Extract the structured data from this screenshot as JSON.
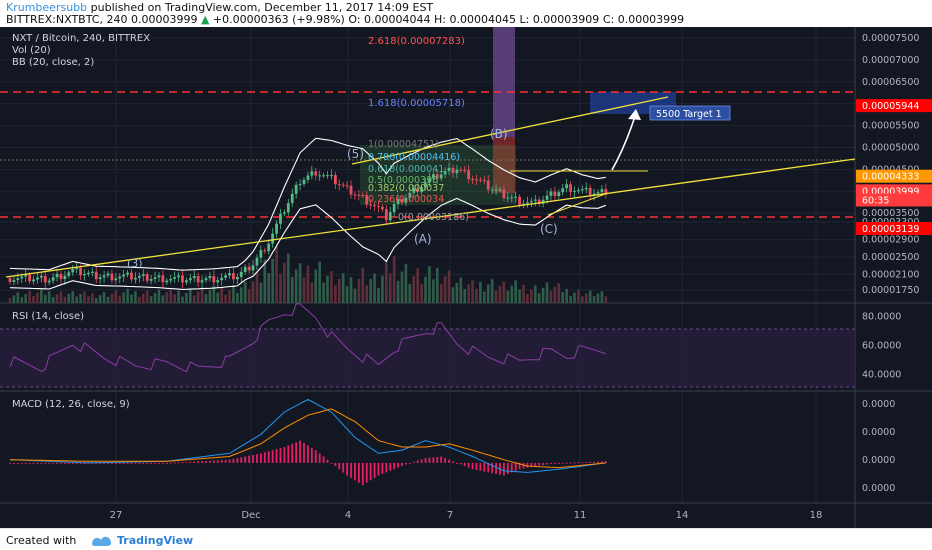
{
  "header": {
    "author": "Krumbeersubb",
    "published": "published on TradingView.com, December 11, 2017 14:09 EST",
    "symbol": "BITTREX:NXTBTC, 240",
    "last": "0.00003999",
    "change_arrow": "▲",
    "change": "+0.00000363 (+9.98%)",
    "o": "O: 0.00004044",
    "h": "H: 0.00004045",
    "l": "L: 0.00003909",
    "c": "C: 0.00003999"
  },
  "legend": {
    "title": "NXT / Bitcoin, 240, BITTREX",
    "vol": "Vol (20)",
    "bb": "BB (20, close, 2)",
    "rsi": "RSI (14, close)",
    "macd": "MACD (12, 26, close, 9)"
  },
  "annotations": {
    "fib_2618": "2.618(0.00007283)",
    "fib_1618": "1.618(0.00005718)",
    "fib_1": "1(0.00004751)",
    "fib_0786": "0.786(0.00004416)",
    "fib_0618": "0.618(0.000041",
    "fib_05": "0.5(0.0000396",
    "fib_0382": "0.382(0.000037",
    "fib_0236": "0.236(0.000034",
    "fib_0": "0(0.00003186)",
    "target": "5500 Target 1",
    "wave_3": "(3)",
    "wave_5": "(5)",
    "wave_A": "(A)",
    "wave_B": "(B)",
    "wave_C": "(C)"
  },
  "footer": {
    "created_with": "Created with",
    "brand": "TradingView"
  },
  "colors": {
    "bg": "#131722",
    "grid": "#1f2433",
    "up": "#53b987",
    "down": "#eb4d5c",
    "bb": "#ffffff",
    "trend": "#f2e23a",
    "red_dash": "#ff3030",
    "rsi": "#8a3ea3",
    "macd": "#2196f3",
    "signal": "#ff8c00",
    "hist": "#e91e63",
    "price_tag": "#ff9800",
    "red_tag": "#ff0000",
    "target_box": "#1e3a8a"
  },
  "chart_data": [
    {
      "type": "candlestick",
      "name": "price",
      "ylim": [
        1.45e-05,
        7.75e-05
      ],
      "y_ticks": [
        "0.00007500",
        "0.00007000",
        "0.00006500",
        "0.00006000",
        "0.00005500",
        "0.00005000",
        "0.00004500",
        "0.00004000",
        "0.00003500",
        "0.00003300",
        "0.00002900",
        "0.00002500",
        "0.00002100",
        "0.00001750"
      ],
      "price_tags": [
        {
          "label": "0.00005944",
          "value": 5.944e-05,
          "color": "#ff0000"
        },
        {
          "label": "0.00004333",
          "value": 4.333e-05,
          "color": "#ff9800"
        },
        {
          "label": "0.00003999",
          "value": 3.999e-05,
          "color": "#ff3b3b"
        },
        {
          "label": "60:35",
          "value": 3.79e-05,
          "color": "#ff3b3b"
        },
        {
          "label": "0.00003139",
          "value": 3.139e-05,
          "color": "#ff0000"
        }
      ],
      "x_labels": [
        "27",
        "Dec",
        "4",
        "7",
        "11",
        "14",
        "18"
      ],
      "close_path": [
        [
          0,
          2.02e-05
        ],
        [
          10,
          1.99e-05
        ],
        [
          16,
          2.18e-05
        ],
        [
          22,
          2.07e-05
        ],
        [
          30,
          2.05e-05
        ],
        [
          38,
          2.02e-05
        ],
        [
          44,
          1.98e-05
        ],
        [
          52,
          2.01e-05
        ],
        [
          58,
          2.06e-05
        ],
        [
          62,
          2.34e-05
        ],
        [
          66,
          2.85e-05
        ],
        [
          70,
          3.58e-05
        ],
        [
          74,
          4.24e-05
        ],
        [
          78,
          4.45e-05
        ],
        [
          82,
          4.28e-05
        ],
        [
          86,
          4.05e-05
        ],
        [
          90,
          3.85e-05
        ],
        [
          94,
          3.6e-05
        ],
        [
          96,
          3.4e-05
        ],
        [
          98,
          3.68e-05
        ],
        [
          102,
          3.95e-05
        ],
        [
          106,
          4.2e-05
        ],
        [
          110,
          4.4e-05
        ],
        [
          114,
          4.52e-05
        ],
        [
          118,
          4.32e-05
        ],
        [
          122,
          4.1e-05
        ],
        [
          126,
          3.92e-05
        ],
        [
          130,
          3.78e-05
        ],
        [
          134,
          3.72e-05
        ],
        [
          138,
          3.92e-05
        ],
        [
          142,
          4.1e-05
        ],
        [
          146,
          4e-05
        ],
        [
          150,
          3.95e-05
        ],
        [
          152,
          4e-05
        ]
      ],
      "volume_path": [
        [
          0,
          4
        ],
        [
          10,
          5
        ],
        [
          20,
          4
        ],
        [
          30,
          5
        ],
        [
          40,
          5
        ],
        [
          52,
          6
        ],
        [
          60,
          8
        ],
        [
          64,
          12
        ],
        [
          66,
          25
        ],
        [
          70,
          20
        ],
        [
          74,
          14
        ],
        [
          78,
          18
        ],
        [
          82,
          12
        ],
        [
          86,
          10
        ],
        [
          90,
          14
        ],
        [
          94,
          10
        ],
        [
          98,
          20
        ],
        [
          102,
          14
        ],
        [
          106,
          12
        ],
        [
          110,
          16
        ],
        [
          114,
          10
        ],
        [
          118,
          8
        ],
        [
          122,
          10
        ],
        [
          126,
          8
        ],
        [
          130,
          8
        ],
        [
          134,
          7
        ],
        [
          138,
          8
        ],
        [
          142,
          6
        ],
        [
          146,
          5
        ],
        [
          152,
          4
        ]
      ]
    },
    {
      "type": "line",
      "name": "RSI (14, close)",
      "ylim": [
        30,
        88
      ],
      "y_ticks": [
        "80.0000",
        "60.0000",
        "40.0000"
      ],
      "path": [
        [
          0,
          49
        ],
        [
          8,
          45
        ],
        [
          16,
          62
        ],
        [
          24,
          52
        ],
        [
          32,
          46
        ],
        [
          40,
          48
        ],
        [
          48,
          44
        ],
        [
          56,
          50
        ],
        [
          62,
          64
        ],
        [
          66,
          76
        ],
        [
          70,
          83
        ],
        [
          74,
          86
        ],
        [
          78,
          80
        ],
        [
          82,
          66
        ],
        [
          86,
          58
        ],
        [
          90,
          52
        ],
        [
          94,
          46
        ],
        [
          98,
          58
        ],
        [
          102,
          64
        ],
        [
          106,
          70
        ],
        [
          110,
          73
        ],
        [
          114,
          62
        ],
        [
          118,
          56
        ],
        [
          122,
          52
        ],
        [
          126,
          51
        ],
        [
          130,
          49
        ],
        [
          134,
          53
        ],
        [
          138,
          56
        ],
        [
          142,
          53
        ],
        [
          146,
          57
        ],
        [
          152,
          57
        ]
      ]
    },
    {
      "type": "line",
      "name": "MACD (12, 26, close, 9)",
      "ylim": [
        -1.2e-06,
        2.2e-06
      ],
      "y_ticks": [
        "0.0000",
        "0.0000",
        "0.0000",
        "0.0000"
      ],
      "macd": [
        [
          0,
          1e-07
        ],
        [
          20,
          0.0
        ],
        [
          40,
          5e-08
        ],
        [
          56,
          3e-07
        ],
        [
          64,
          9e-07
        ],
        [
          70,
          1.6e-06
        ],
        [
          76,
          2e-06
        ],
        [
          82,
          1.6e-06
        ],
        [
          88,
          8e-07
        ],
        [
          94,
          3e-07
        ],
        [
          100,
          4e-07
        ],
        [
          106,
          7e-07
        ],
        [
          112,
          5e-07
        ],
        [
          118,
          2e-07
        ],
        [
          126,
          -2.5e-07
        ],
        [
          132,
          -3e-07
        ],
        [
          140,
          -2e-07
        ],
        [
          152,
          0.0
        ]
      ],
      "signal": [
        [
          0,
          1e-07
        ],
        [
          20,
          5e-08
        ],
        [
          40,
          5e-08
        ],
        [
          56,
          2e-07
        ],
        [
          64,
          6e-07
        ],
        [
          70,
          1.1e-06
        ],
        [
          76,
          1.5e-06
        ],
        [
          82,
          1.7e-06
        ],
        [
          88,
          1.3e-06
        ],
        [
          94,
          7e-07
        ],
        [
          100,
          5e-07
        ],
        [
          106,
          5e-07
        ],
        [
          112,
          6e-07
        ],
        [
          118,
          4e-07
        ],
        [
          126,
          1e-07
        ],
        [
          132,
          -1e-07
        ],
        [
          140,
          -1.5e-07
        ],
        [
          152,
          0.0
        ]
      ],
      "histogram": [
        [
          0,
          0.0
        ],
        [
          20,
          0.0
        ],
        [
          40,
          0.0
        ],
        [
          56,
          1e-07
        ],
        [
          64,
          3e-07
        ],
        [
          70,
          5e-07
        ],
        [
          74,
          7e-07
        ],
        [
          78,
          4e-07
        ],
        [
          82,
          0.0
        ],
        [
          86,
          -4e-07
        ],
        [
          90,
          -7e-07
        ],
        [
          94,
          -4e-07
        ],
        [
          98,
          -2e-07
        ],
        [
          102,
          0.0
        ],
        [
          106,
          1.5e-07
        ],
        [
          110,
          2e-07
        ],
        [
          114,
          0.0
        ],
        [
          118,
          -2e-07
        ],
        [
          122,
          -3e-07
        ],
        [
          126,
          -4e-07
        ],
        [
          130,
          -2e-07
        ],
        [
          134,
          -1e-07
        ],
        [
          140,
          0.0
        ],
        [
          152,
          5e-08
        ]
      ]
    }
  ]
}
